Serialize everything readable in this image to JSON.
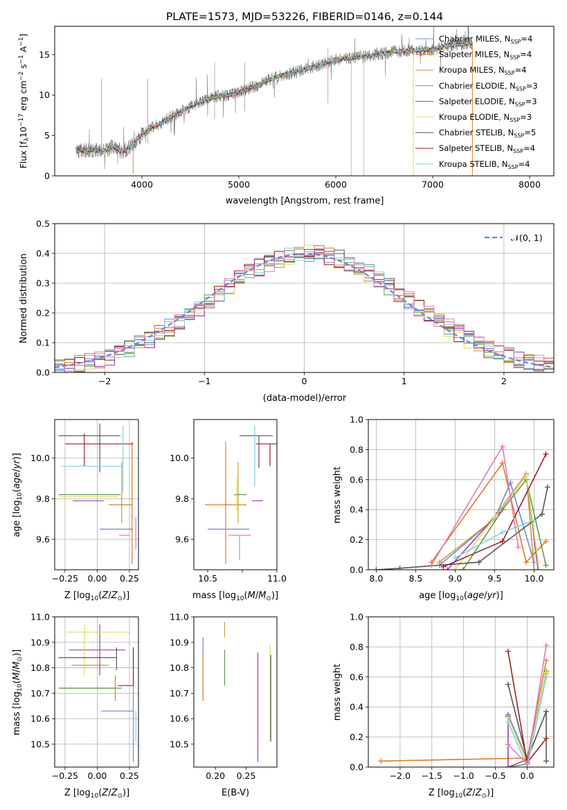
{
  "title": "PLATE=1573, MJD=53226, FIBERID=0146, z=0.144",
  "colors": {
    "series": [
      "#6c88d8",
      "#e07b22",
      "#c99a36",
      "#5a9a4a",
      "#9b3ab5",
      "#d6e05a",
      "#555555",
      "#a01c24",
      "#7fd4e0"
    ],
    "extra": {
      "pink": "#e07bb8",
      "gray": "#888888"
    }
  },
  "legend_spectrum": [
    {
      "name": "Chabrier MILES, N",
      "sub": "SSP",
      "tail": "=4"
    },
    {
      "name": "Salpeter MILES, N",
      "sub": "SSP",
      "tail": "=4"
    },
    {
      "name": "Kroupa MILES, N",
      "sub": "SSP",
      "tail": "=4"
    },
    {
      "name": "Chabrier ELODIE, N",
      "sub": "SSP",
      "tail": "=3"
    },
    {
      "name": "Salpeter ELODIE, N",
      "sub": "SSP",
      "tail": "=3"
    },
    {
      "name": "Kroupa ELODIE, N",
      "sub": "SSP",
      "tail": "=3"
    },
    {
      "name": "Chabrier STELIB, N",
      "sub": "SSP",
      "tail": "=5"
    },
    {
      "name": "Salpeter STELIB, N",
      "sub": "SSP",
      "tail": "=4"
    },
    {
      "name": "Kroupa STELIB, N",
      "sub": "SSP",
      "tail": "=4"
    }
  ],
  "legend_hist": "𝒩(0, 1)",
  "chart_data": [
    {
      "id": "spectrum",
      "type": "line",
      "xlabel": "wavelength [Angstrom, rest frame]",
      "ylabel": "Flux [f_λ 10^-17 erg cm^-2 s^-1 A^-1]",
      "xlim": [
        3100,
        8250
      ],
      "ylim": [
        0,
        18.5
      ],
      "xticks": [
        4000,
        5000,
        6000,
        7000,
        8000
      ],
      "yticks": [
        0,
        5,
        10,
        15
      ],
      "grid": false,
      "continuum": {
        "x": [
          3320,
          3400,
          3500,
          3600,
          3700,
          3800,
          3900,
          4000,
          4100,
          4200,
          4300,
          4400,
          4500,
          4600,
          4700,
          4800,
          4900,
          5000,
          5200,
          5400,
          5600,
          5800,
          6000,
          6200,
          6400,
          6600,
          6800,
          7000,
          7200,
          7400
        ],
        "y": [
          3.2,
          3.1,
          3.2,
          3.0,
          3.6,
          2.9,
          3.8,
          5.2,
          6.0,
          6.5,
          7.3,
          7.9,
          8.6,
          9.1,
          9.6,
          9.9,
          10.0,
          10.3,
          11.3,
          12.3,
          12.9,
          13.6,
          14.4,
          14.6,
          14.9,
          15.4,
          15.5,
          15.6,
          16.2,
          16.4
        ]
      },
      "data_range": [
        3320,
        7410
      ]
    },
    {
      "id": "residual-histogram",
      "type": "bar",
      "xlabel": "(data-model)/error",
      "ylabel": "Normed distribution",
      "xlim": [
        -2.5,
        2.5
      ],
      "ylim": [
        0,
        0.5
      ],
      "xticks": [
        -2,
        -1,
        0,
        1,
        2
      ],
      "yticks": [
        0.0,
        0.1,
        0.2,
        0.3,
        0.4,
        0.5
      ],
      "grid": true,
      "legend": "top-right",
      "bin_width": 0.1,
      "reference": "standard normal"
    },
    {
      "id": "age-vs-Z",
      "type": "scatter",
      "xlabel": "Z [log10(Z/Z_sun)]",
      "ylabel": "age [log10(age/yr)]",
      "xlim": [
        -0.33,
        0.32
      ],
      "ylim": [
        9.45,
        10.19
      ],
      "xticks": [
        -0.25,
        0.0,
        0.25
      ],
      "yticks": [
        9.6,
        9.8,
        10.0
      ],
      "grid": true,
      "points": [
        {
          "x": 0.14,
          "y": 9.65,
          "xerr": [
            0.12,
            0.14
          ],
          "yerr": [
            0.0,
            0.0
          ]
        },
        {
          "x": 0.27,
          "y": 9.77,
          "xerr": [
            0.18,
            0.0
          ],
          "yerr": [
            0.29,
            0.31
          ]
        },
        {
          "x": 0.19,
          "y": 9.82,
          "xerr": [
            0.0,
            0.0
          ],
          "yerr": [
            0.14,
            0.16
          ]
        },
        {
          "x": -0.06,
          "y": 9.82,
          "xerr": [
            0.24,
            0.24
          ],
          "yerr": [
            0.0,
            0.0
          ]
        },
        {
          "x": 0.05,
          "y": 9.79,
          "xerr": [
            0.24,
            0.0
          ],
          "yerr": [
            0.0,
            0.0
          ]
        },
        {
          "x": -0.05,
          "y": 9.81,
          "xerr": [
            0.24,
            0.21
          ],
          "yerr": [
            0.0,
            0.0
          ]
        },
        {
          "x": 0.02,
          "y": 10.11,
          "xerr": [
            0.32,
            0.16
          ],
          "yerr": [
            0.18,
            0.06
          ]
        },
        {
          "x": -0.1,
          "y": 10.07,
          "xerr": [
            0.15,
            0.38
          ],
          "yerr": [
            0.11,
            0.05
          ]
        },
        {
          "x": 0.2,
          "y": 9.96,
          "xerr": [
            0.48,
            0.0
          ],
          "yerr": [
            0.13,
            0.2
          ]
        },
        {
          "x": 0.3,
          "y": 9.62,
          "xerr": [
            0.0,
            0.0
          ],
          "yerr": [
            0.07,
            0.09
          ]
        },
        {
          "x": 0.25,
          "y": 9.62,
          "xerr": [
            0.08,
            0.0
          ],
          "yerr": [
            0.0,
            0.0
          ]
        }
      ]
    },
    {
      "id": "age-vs-mass",
      "type": "scatter",
      "xlabel": "mass [log10(M/M_sun)]",
      "ylabel": "",
      "xlim": [
        10.4,
        11.0
      ],
      "ylim": [
        9.45,
        10.19
      ],
      "xticks": [
        10.5,
        10.75,
        11.0
      ],
      "xticklabels": [
        "10.5",
        "",
        "11.0"
      ],
      "yticks": [
        9.6,
        9.8,
        10.0
      ],
      "grid": false,
      "points": [
        {
          "x": 10.65,
          "y": 9.65,
          "xerr": [
            0.15,
            0.15
          ],
          "yerr": [
            0.0,
            0.0
          ]
        },
        {
          "x": 10.63,
          "y": 9.77,
          "xerr": [
            0.15,
            0.15
          ],
          "yerr": [
            0.29,
            0.31
          ]
        },
        {
          "x": 10.72,
          "y": 9.82,
          "xerr": [
            0.0,
            0.0
          ],
          "yerr": [
            0.14,
            0.16
          ]
        },
        {
          "x": 10.74,
          "y": 9.82,
          "xerr": [
            0.05,
            0.04
          ],
          "yerr": [
            0.0,
            0.0
          ]
        },
        {
          "x": 10.82,
          "y": 9.79,
          "xerr": [
            0.0,
            0.08
          ],
          "yerr": [
            0.0,
            0.0
          ]
        },
        {
          "x": 10.71,
          "y": 9.81,
          "xerr": [
            0.0,
            0.0
          ],
          "yerr": [
            0.07,
            0.09
          ]
        },
        {
          "x": 10.87,
          "y": 10.11,
          "xerr": [
            0.14,
            0.1
          ],
          "yerr": [
            0.16,
            0.0
          ]
        },
        {
          "x": 10.95,
          "y": 10.07,
          "xerr": [
            0.1,
            0.06
          ],
          "yerr": [
            0.11,
            0.0
          ]
        },
        {
          "x": 10.84,
          "y": 9.96,
          "xerr": [
            0.0,
            0.0
          ],
          "yerr": [
            0.1,
            0.2
          ]
        },
        {
          "x": 10.73,
          "y": 9.62,
          "xerr": [
            0.08,
            0.08
          ],
          "yerr": [
            0.12,
            0.0
          ]
        }
      ]
    },
    {
      "id": "mass-weight-vs-age",
      "type": "line",
      "xlabel": "age [log10(age/yr)]",
      "ylabel": "mass weight",
      "xlim": [
        7.9,
        10.25
      ],
      "ylim": [
        0,
        1.0
      ],
      "xticks": [
        8.0,
        8.5,
        9.0,
        9.5,
        10.0
      ],
      "yticks": [
        0.0,
        0.2,
        0.4,
        0.6,
        0.8,
        1.0
      ],
      "grid": true,
      "series": [
        {
          "x": [
            8.8,
            9.5,
            9.7,
            10.0
          ],
          "y": [
            0.03,
            0.34,
            0.58,
            0.05
          ]
        },
        {
          "x": [
            8.7,
            9.6,
            9.9,
            10.15
          ],
          "y": [
            0.05,
            0.71,
            0.05,
            0.19
          ]
        },
        {
          "x": [
            8.8,
            9.45,
            9.9,
            10.0
          ],
          "y": [
            0.05,
            0.32,
            0.64,
            0.0
          ]
        },
        {
          "x": [
            9.1,
            9.6,
            9.9,
            10.15
          ],
          "y": [
            0.0,
            0.4,
            0.6,
            0.03
          ]
        },
        {
          "x": [
            8.9,
            9.55,
            9.9,
            10.05
          ],
          "y": [
            0.0,
            0.38,
            0.63,
            0.0
          ]
        },
        {
          "x": [
            9.0,
            9.5,
            9.9,
            10.05
          ],
          "y": [
            0.0,
            0.35,
            0.63,
            0.05
          ]
        },
        {
          "x": [
            8.0,
            8.3,
            9.3,
            10.1,
            10.17
          ],
          "y": [
            0.0,
            0.01,
            0.05,
            0.37,
            0.55
          ]
        },
        {
          "x": [
            8.85,
            9.6,
            10.15
          ],
          "y": [
            0.02,
            0.19,
            0.77
          ]
        },
        {
          "x": [
            9.0,
            9.6,
            10.0
          ],
          "y": [
            0.08,
            0.25,
            0.33
          ]
        },
        {
          "x": [
            8.7,
            9.6,
            9.8
          ],
          "y": [
            0.03,
            0.82,
            0.15
          ]
        }
      ]
    },
    {
      "id": "mass-vs-Z",
      "type": "scatter",
      "xlabel": "Z [log10(Z/Z_sun)]",
      "ylabel": "mass [log10(M/M_sun)]",
      "xlim": [
        -0.33,
        0.32
      ],
      "ylim": [
        10.41,
        11.0
      ],
      "xticks": [
        -0.25,
        0.0,
        0.25
      ],
      "yticks": [
        10.5,
        10.6,
        10.7,
        10.8,
        10.9,
        11.0
      ],
      "grid": true,
      "points": [
        {
          "x": 0.28,
          "y": 10.63,
          "xerr": [
            0.25,
            0.0
          ],
          "yerr": [
            0.2,
            0.24
          ]
        },
        {
          "x": 0.14,
          "y": 10.72,
          "xerr": [
            0.44,
            0.0
          ],
          "yerr": [
            0.05,
            0.05
          ]
        },
        {
          "x": -0.05,
          "y": 10.81,
          "xerr": [
            0.15,
            0.14
          ],
          "yerr": [
            0.0,
            0.0
          ]
        },
        {
          "x": 0.19,
          "y": 10.72,
          "xerr": [
            0.48,
            0.0
          ],
          "yerr": [
            0.0,
            0.0
          ]
        },
        {
          "x": 0.02,
          "y": 10.87,
          "xerr": [
            0.24,
            0.2
          ],
          "yerr": [
            0.1,
            0.1
          ]
        },
        {
          "x": -0.1,
          "y": 10.94,
          "xerr": [
            0.14,
            0.36
          ],
          "yerr": [
            0.17,
            0.03
          ]
        },
        {
          "x": 0.15,
          "y": 10.84,
          "xerr": [
            0.45,
            0.0
          ],
          "yerr": [
            0.05,
            0.04
          ]
        },
        {
          "x": 0.28,
          "y": 10.73,
          "xerr": [
            0.12,
            0.0
          ],
          "yerr": [
            0.0,
            0.15
          ]
        },
        {
          "x": 0.3,
          "y": 10.63,
          "xerr": [
            0.0,
            0.0
          ],
          "yerr": [
            0.12,
            0.0
          ]
        }
      ]
    },
    {
      "id": "mass-vs-EBV",
      "type": "scatter",
      "xlabel": "E(B-V)",
      "ylabel": "",
      "xlim": [
        0.165,
        0.3
      ],
      "ylim": [
        10.41,
        11.0
      ],
      "xticks": [
        0.2,
        0.25
      ],
      "yticks": [
        10.5,
        10.6,
        10.7,
        10.8,
        10.9,
        11.0
      ],
      "grid": false,
      "points": [
        {
          "x": 0.18,
          "y": 10.88,
          "yerr": [
            0.04,
            0.04
          ]
        },
        {
          "x": 0.18,
          "y": 10.76,
          "yerr": [
            0.09,
            0.09
          ]
        },
        {
          "x": 0.215,
          "y": 10.95,
          "yerr": [
            0.03,
            0.03
          ]
        },
        {
          "x": 0.215,
          "y": 10.8,
          "yerr": [
            0.07,
            0.07
          ]
        },
        {
          "x": 0.269,
          "y": 10.65,
          "yerr": [
            0.22,
            0.21
          ]
        },
        {
          "x": 0.289,
          "y": 10.7,
          "yerr": [
            0.19,
            0.19
          ]
        },
        {
          "x": 0.29,
          "y": 10.68,
          "yerr": [
            0.17,
            0.17
          ]
        }
      ]
    },
    {
      "id": "mass-weight-vs-Z",
      "type": "line",
      "xlabel": "Z [log10(Z/Z_sun)]",
      "ylabel": "mass weight",
      "xlim": [
        -2.5,
        0.42
      ],
      "ylim": [
        0,
        1.0
      ],
      "xticks": [
        -2.0,
        -1.5,
        -1.0,
        -0.5,
        0.0
      ],
      "yticks": [
        0.0,
        0.2,
        0.4,
        0.6,
        0.8,
        1.0
      ],
      "grid": true,
      "series": [
        {
          "x": [
            -0.3,
            0.0,
            0.3
          ],
          "y": [
            0.35,
            0.05,
            0.6
          ]
        },
        {
          "x": [
            -2.3,
            0.0,
            0.3
          ],
          "y": [
            0.04,
            0.06,
            0.71
          ]
        },
        {
          "x": [
            -0.3,
            0.0,
            0.3
          ],
          "y": [
            0.33,
            0.04,
            0.62
          ]
        },
        {
          "x": [
            -0.3,
            0.0,
            0.3
          ],
          "y": [
            0.0,
            0.02,
            0.64
          ]
        },
        {
          "x": [
            -0.3,
            -0.3,
            0.0,
            0.3
          ],
          "y": [
            0.34,
            0.0,
            0.05,
            0.63
          ]
        },
        {
          "x": [
            -0.3,
            0.0,
            0.3
          ],
          "y": [
            0.33,
            0.03,
            0.63
          ]
        },
        {
          "x": [
            -0.3,
            0.0,
            0.3,
            0.3
          ],
          "y": [
            0.55,
            0.05,
            0.37,
            0.04
          ]
        },
        {
          "x": [
            -0.3,
            0.0,
            0.3
          ],
          "y": [
            0.77,
            0.03,
            0.19
          ]
        },
        {
          "x": [
            -0.3,
            0.0,
            0.3
          ],
          "y": [
            0.3,
            0.0,
            0.6
          ]
        },
        {
          "x": [
            -0.3,
            0.0,
            0.3
          ],
          "y": [
            0.15,
            0.02,
            0.81
          ]
        }
      ]
    }
  ]
}
